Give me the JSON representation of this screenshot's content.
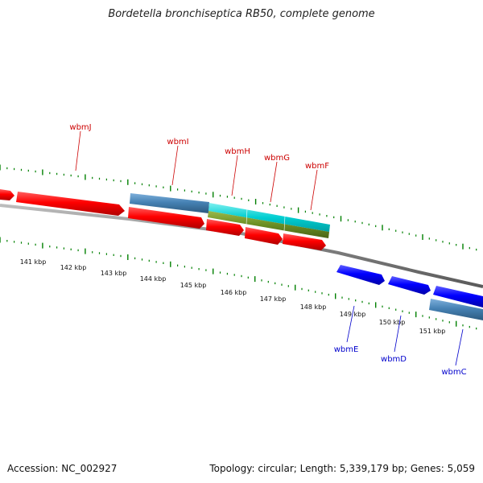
{
  "title": "Bordetella bronchiseptica RB50, complete genome",
  "accession": "Accession: NC_002927",
  "summary": "Topology: circular; Length: 5,339,179 bp; Genes: 5,059",
  "colors": {
    "red": "#ff0000",
    "steelblue": "#4682b4",
    "cyan": "#00ced1",
    "olive": "#6b8e23",
    "blue": "#0000ff",
    "tick": "#008000",
    "backbone": "#808080",
    "label_red": "#cc0000",
    "label_blue": "#0000cc"
  },
  "scale_labels": [
    "141 kbp",
    "142 kbp",
    "143 kbp",
    "144 kbp",
    "145 kbp",
    "146 kbp",
    "147 kbp",
    "148 kbp",
    "149 kbp",
    "150 kbp",
    "151 kbp"
  ],
  "gene_labels_top": [
    "wbmJ",
    "wbmI",
    "wbmH",
    "wbmG",
    "wbmF"
  ],
  "gene_labels_bottom": [
    "wbmE",
    "wbmD",
    "wbmC"
  ]
}
